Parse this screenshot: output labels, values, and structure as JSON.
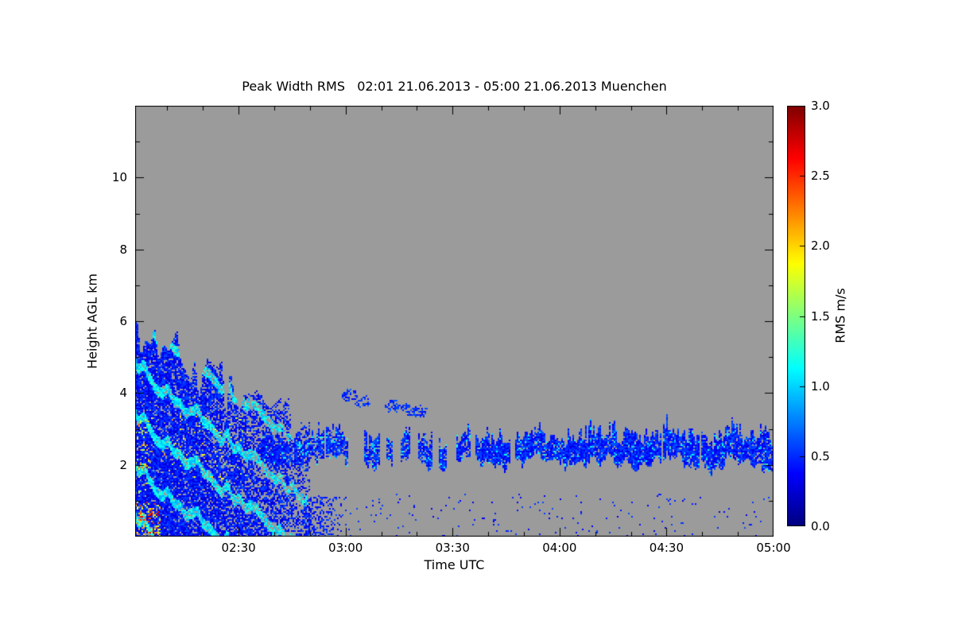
{
  "chart_data": {
    "type": "heatmap",
    "title": "Peak Width RMS   02:01 21.06.2013 - 05:00 21.06.2013 Muenchen",
    "quantity": "Peak Width RMS",
    "time_span": "02:01 21.06.2013 - 05:00 21.06.2013",
    "location": "Muenchen",
    "xlabel": "Time UTC",
    "ylabel": "Height AGL km",
    "x_range_minutes": [
      121,
      300
    ],
    "x_ticks": [
      "02:30",
      "03:00",
      "03:30",
      "04:00",
      "04:30",
      "05:00"
    ],
    "x_tick_minutes": [
      150,
      180,
      210,
      240,
      270,
      300
    ],
    "ylim": [
      0,
      12
    ],
    "y_ticks": [
      "2",
      "4",
      "6",
      "8",
      "10"
    ],
    "y_tick_values": [
      2,
      4,
      6,
      8,
      10
    ],
    "colorbar": {
      "label": "RMS m/s",
      "min": 0.0,
      "max": 3.0,
      "ticks": [
        "0.0",
        "0.5",
        "1.0",
        "1.5",
        "2.0",
        "2.5",
        "3.0"
      ],
      "tick_values": [
        0,
        0.5,
        1,
        1.5,
        2,
        2.5,
        3
      ],
      "colormap": "jet"
    },
    "no_data_color": "#9b9b9b",
    "grid": false,
    "features": [
      {
        "name": "boundary-layer-plume",
        "time_min": [
          121,
          170
        ],
        "top_km": [
          5.6,
          2.9
        ],
        "base_km": 0,
        "typical_rms": [
          0.2,
          0.7
        ],
        "streak_rms": [
          0.85,
          1.3
        ],
        "hotspot_rms": [
          1.4,
          2.9
        ]
      },
      {
        "name": "elevated-thin-layer",
        "time_min": [
          156,
          300
        ],
        "center_km": 2.42,
        "width_km": [
          0.4,
          0.9
        ],
        "typical_rms": [
          0.25,
          0.7
        ],
        "fleck_rms": [
          0.9,
          1.3
        ],
        "patchy_until_min": 218
      },
      {
        "name": "mid-level-patches",
        "typical_rms": [
          0.35,
          0.65
        ],
        "blobs": [
          {
            "t": 181,
            "h": 3.95
          },
          {
            "t": 184.5,
            "h": 3.8
          },
          {
            "t": 193,
            "h": 3.65
          },
          {
            "t": 197.5,
            "h": 3.55
          },
          {
            "t": 200.5,
            "h": 3.5
          }
        ]
      },
      {
        "name": "plume-tail-low",
        "time_min": [
          168,
          181
        ],
        "top_km": 1.15,
        "typical_rms": [
          0.25,
          0.6
        ]
      },
      {
        "name": "surface-speckle",
        "time_min": [
          172,
          300
        ],
        "top_km": 1.2,
        "coverage": 0.013,
        "typical_rms": [
          0.25,
          0.55
        ]
      }
    ]
  }
}
